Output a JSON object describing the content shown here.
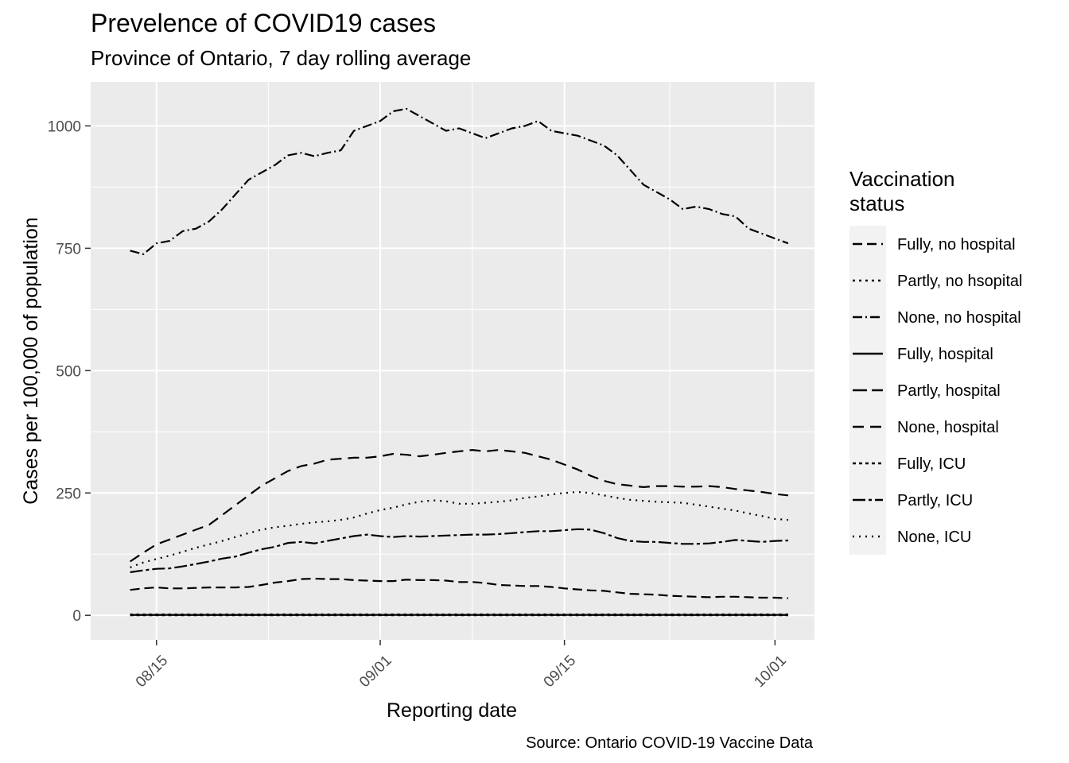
{
  "chart_data": {
    "type": "line",
    "title": "Prevelence of COVID19 cases",
    "subtitle": "Province of Ontario, 7 day rolling average",
    "xlabel": "Reporting date",
    "ylabel": "Cases per 100,000 of population",
    "caption": "Source: Ontario COVID-19 Vaccine Data",
    "x_ticks": [
      "2021-08-15",
      "2021-09-01",
      "2021-09-15",
      "2021-10-01"
    ],
    "x_tick_labels": [
      "08/15",
      "09/01",
      "09/15",
      "10/01"
    ],
    "x_range": [
      "2021-08-10",
      "2021-10-04"
    ],
    "y_ticks": [
      0,
      250,
      500,
      750,
      1000
    ],
    "y_tick_labels": [
      "0",
      "250",
      "500",
      "750",
      "1000"
    ],
    "ylim": [
      -50,
      1090
    ],
    "grid": true,
    "legend": {
      "title_lines": [
        "Vaccination",
        "status"
      ],
      "position": "right"
    },
    "colors": {
      "panel": "#ebebeb",
      "grid": "#ffffff",
      "line": "#000000",
      "tick": "#4d4d4d",
      "legend_key": "#f2f2f2"
    },
    "x": [
      "2021-08-13",
      "2021-08-14",
      "2021-08-15",
      "2021-08-16",
      "2021-08-17",
      "2021-08-18",
      "2021-08-19",
      "2021-08-20",
      "2021-08-21",
      "2021-08-22",
      "2021-08-23",
      "2021-08-24",
      "2021-08-25",
      "2021-08-26",
      "2021-08-27",
      "2021-08-28",
      "2021-08-29",
      "2021-08-30",
      "2021-08-31",
      "2021-09-01",
      "2021-09-02",
      "2021-09-03",
      "2021-09-04",
      "2021-09-05",
      "2021-09-06",
      "2021-09-07",
      "2021-09-08",
      "2021-09-09",
      "2021-09-10",
      "2021-09-11",
      "2021-09-12",
      "2021-09-13",
      "2021-09-14",
      "2021-09-15",
      "2021-09-16",
      "2021-09-17",
      "2021-09-18",
      "2021-09-19",
      "2021-09-20",
      "2021-09-21",
      "2021-09-22",
      "2021-09-23",
      "2021-09-24",
      "2021-09-25",
      "2021-09-26",
      "2021-09-27",
      "2021-09-28",
      "2021-09-29",
      "2021-09-30",
      "2021-10-01",
      "2021-10-02"
    ],
    "series": [
      {
        "name": "Fully, no hospital",
        "dash": "12 6",
        "values": [
          52,
          55,
          57,
          55,
          55,
          56,
          57,
          57,
          57,
          58,
          62,
          67,
          70,
          74,
          75,
          74,
          74,
          72,
          71,
          70,
          70,
          73,
          72,
          72,
          71,
          68,
          68,
          66,
          62,
          61,
          60,
          60,
          58,
          55,
          53,
          51,
          50,
          47,
          44,
          43,
          42,
          40,
          39,
          38,
          37,
          38,
          38,
          37,
          36,
          36,
          35
        ]
      },
      {
        "name": "Partly, no hsopital",
        "dash": "3 5",
        "values": [
          2,
          2,
          2,
          2,
          2,
          2,
          2,
          2,
          2,
          2,
          2,
          2,
          2,
          2,
          2,
          2,
          2,
          2,
          2,
          2,
          2,
          2,
          2,
          2,
          2,
          2,
          2,
          2,
          2,
          2,
          2,
          2,
          2,
          2,
          2,
          2,
          2,
          2,
          2,
          2,
          2,
          2,
          2,
          2,
          2,
          2,
          2,
          2,
          2,
          2,
          2
        ]
      },
      {
        "name": "None, no hospital",
        "dash": "12 4 2 4",
        "values": [
          745,
          738,
          760,
          765,
          785,
          790,
          805,
          830,
          860,
          890,
          905,
          920,
          940,
          945,
          938,
          945,
          950,
          990,
          1000,
          1010,
          1030,
          1035,
          1020,
          1005,
          990,
          995,
          985,
          975,
          985,
          995,
          1000,
          1010,
          990,
          985,
          980,
          970,
          960,
          940,
          910,
          880,
          865,
          850,
          830,
          835,
          830,
          820,
          815,
          790,
          780,
          770,
          760
        ]
      },
      {
        "name": "Fully, hospital",
        "dash": "",
        "values": [
          1,
          1,
          1,
          1,
          1,
          1,
          1,
          1,
          1,
          1,
          1,
          1,
          1,
          1,
          1,
          1,
          1,
          1,
          1,
          1,
          1,
          1,
          1,
          1,
          1,
          1,
          1,
          1,
          1,
          1,
          1,
          1,
          1,
          1,
          1,
          1,
          1,
          1,
          1,
          1,
          1,
          1,
          1,
          1,
          1,
          1,
          1,
          1,
          1,
          1,
          1
        ]
      },
      {
        "name": "Partly, hospital",
        "dash": "18 6",
        "values": [
          1,
          1,
          1,
          1,
          1,
          1,
          1,
          1,
          1,
          1,
          1,
          1,
          1,
          1,
          1,
          1,
          1,
          1,
          1,
          1,
          1,
          1,
          1,
          1,
          1,
          1,
          1,
          1,
          1,
          1,
          1,
          1,
          1,
          1,
          1,
          1,
          1,
          1,
          1,
          1,
          1,
          1,
          1,
          1,
          1,
          1,
          1,
          1,
          1,
          1,
          1
        ]
      },
      {
        "name": "None, hospital",
        "dash": "14 8",
        "values": [
          110,
          128,
          145,
          155,
          165,
          175,
          185,
          205,
          225,
          245,
          265,
          280,
          295,
          305,
          310,
          318,
          320,
          322,
          322,
          325,
          330,
          328,
          325,
          328,
          332,
          335,
          338,
          335,
          338,
          335,
          332,
          325,
          318,
          308,
          298,
          285,
          275,
          268,
          265,
          262,
          264,
          264,
          263,
          263,
          264,
          262,
          258,
          255,
          252,
          248,
          245
        ]
      },
      {
        "name": "Fully, ICU",
        "dash": "4 4",
        "values": [
          0,
          0,
          0,
          0,
          0,
          0,
          0,
          0,
          0,
          0,
          0,
          0,
          0,
          0,
          0,
          0,
          0,
          0,
          0,
          0,
          0,
          0,
          0,
          0,
          0,
          0,
          0,
          0,
          0,
          0,
          0,
          0,
          0,
          0,
          0,
          0,
          0,
          0,
          0,
          0,
          0,
          0,
          0,
          0,
          0,
          0,
          0,
          0,
          0,
          0,
          0
        ]
      },
      {
        "name": "Partly, ICU",
        "dash": "16 4 4 4",
        "values": [
          88,
          92,
          95,
          96,
          100,
          105,
          110,
          116,
          120,
          128,
          135,
          140,
          148,
          150,
          147,
          152,
          157,
          162,
          165,
          162,
          160,
          162,
          161,
          162,
          163,
          164,
          165,
          165,
          166,
          168,
          170,
          172,
          172,
          174,
          176,
          175,
          168,
          158,
          152,
          150,
          150,
          148,
          146,
          146,
          147,
          150,
          154,
          152,
          150,
          152,
          153
        ]
      },
      {
        "name": "None, ICU",
        "dash": "2 6",
        "values": [
          98,
          108,
          115,
          122,
          130,
          138,
          145,
          152,
          160,
          168,
          175,
          180,
          183,
          187,
          190,
          192,
          195,
          200,
          208,
          215,
          220,
          227,
          232,
          235,
          233,
          228,
          228,
          230,
          232,
          235,
          240,
          243,
          247,
          250,
          252,
          250,
          245,
          240,
          236,
          234,
          232,
          231,
          230,
          226,
          222,
          218,
          214,
          208,
          203,
          197,
          195
        ]
      }
    ]
  }
}
